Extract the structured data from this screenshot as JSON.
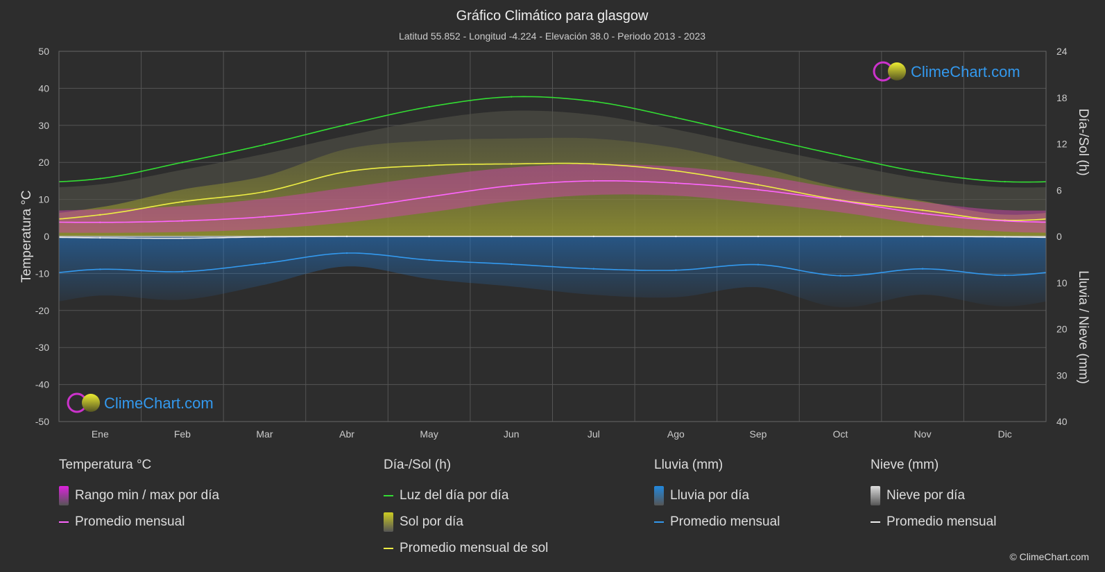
{
  "chart_data": {
    "type": "area",
    "title": "Gráfico Climático para glasgow",
    "subtitle": "Latitud 55.852 - Longitud -4.224 - Elevación 38.0 - Periodo 2013 - 2023",
    "categories": [
      "Ene",
      "Feb",
      "Mar",
      "Abr",
      "May",
      "Jun",
      "Jul",
      "Ago",
      "Sep",
      "Oct",
      "Nov",
      "Dic"
    ],
    "y_left": {
      "label": "Temperatura °C",
      "min": -50,
      "max": 50,
      "ticks": [
        50,
        40,
        30,
        20,
        10,
        0,
        -10,
        -20,
        -30,
        -40,
        -50
      ]
    },
    "y_right_top": {
      "label": "Día-/Sol (h)",
      "ticks": [
        24,
        18,
        12,
        6,
        0
      ],
      "range": [
        0,
        24
      ]
    },
    "y_right_bottom": {
      "label": "Lluvia / Nieve (mm)",
      "ticks": [
        0,
        10,
        20,
        30,
        40
      ],
      "range": [
        0,
        40
      ]
    },
    "series": [
      {
        "name": "Luz del día por día",
        "unit": "h",
        "color": "#33dd33",
        "values": [
          7.5,
          9.6,
          11.9,
          14.5,
          16.8,
          18.1,
          17.5,
          15.4,
          12.9,
          10.5,
          8.3,
          7.1
        ]
      },
      {
        "name": "Promedio mensual de sol",
        "unit": "h",
        "color": "#eeee44",
        "values": [
          2.8,
          4.5,
          5.8,
          8.4,
          9.2,
          9.4,
          9.4,
          8.5,
          6.7,
          4.7,
          3.4,
          2.1
        ]
      },
      {
        "name": "Temperatura promedio mensual",
        "unit": "°C",
        "color": "#ff66ff",
        "values": [
          3.8,
          4.2,
          5.3,
          7.5,
          10.7,
          13.7,
          15.0,
          14.4,
          12.6,
          9.6,
          6.2,
          4.2
        ]
      },
      {
        "name": "Lluvia promedio mensual",
        "unit": "mm",
        "color": "#3399ee",
        "values": [
          7.1,
          7.6,
          5.8,
          3.6,
          5.1,
          6.0,
          7.0,
          7.3,
          6.1,
          8.5,
          7.0,
          8.4
        ]
      },
      {
        "name": "Nieve promedio mensual",
        "unit": "mm",
        "color": "#eeeeee",
        "values": [
          0.3,
          0.4,
          0.1,
          0,
          0,
          0,
          0,
          0,
          0,
          0,
          0,
          0.1
        ]
      }
    ],
    "temp_range": {
      "min": [
        1.0,
        1.2,
        2.0,
        3.8,
        6.5,
        9.5,
        11.2,
        11.0,
        9.0,
        6.5,
        3.3,
        1.3
      ],
      "max": [
        7.3,
        8.2,
        10.2,
        13.2,
        16.2,
        18.6,
        19.6,
        18.8,
        16.5,
        12.8,
        9.3,
        7.1
      ]
    },
    "grid": true
  },
  "watermark": {
    "text": "ClimeChart.com"
  },
  "legend": {
    "groups": [
      {
        "title": "Temperatura °C",
        "items": [
          {
            "label": "Rango min / max por día",
            "kind": "grad",
            "color": "#dd22dd"
          },
          {
            "label": "Promedio mensual",
            "kind": "line",
            "color": "#ff66ff"
          }
        ]
      },
      {
        "title": "Día-/Sol (h)",
        "items": [
          {
            "label": "Luz del día por día",
            "kind": "line",
            "color": "#33dd33"
          },
          {
            "label": "Sol por día",
            "kind": "grad",
            "color": "#cccc22"
          },
          {
            "label": "Promedio mensual de sol",
            "kind": "line",
            "color": "#eeee44"
          }
        ]
      },
      {
        "title": "Lluvia (mm)",
        "items": [
          {
            "label": "Lluvia por día",
            "kind": "grad",
            "color": "#2288dd"
          },
          {
            "label": "Promedio mensual",
            "kind": "line",
            "color": "#3399ee"
          }
        ]
      },
      {
        "title": "Nieve (mm)",
        "items": [
          {
            "label": "Nieve por día",
            "kind": "grad",
            "color": "#dddddd"
          },
          {
            "label": "Promedio mensual",
            "kind": "line",
            "color": "#eeeeee"
          }
        ]
      }
    ]
  },
  "copyright": "© ClimeChart.com"
}
